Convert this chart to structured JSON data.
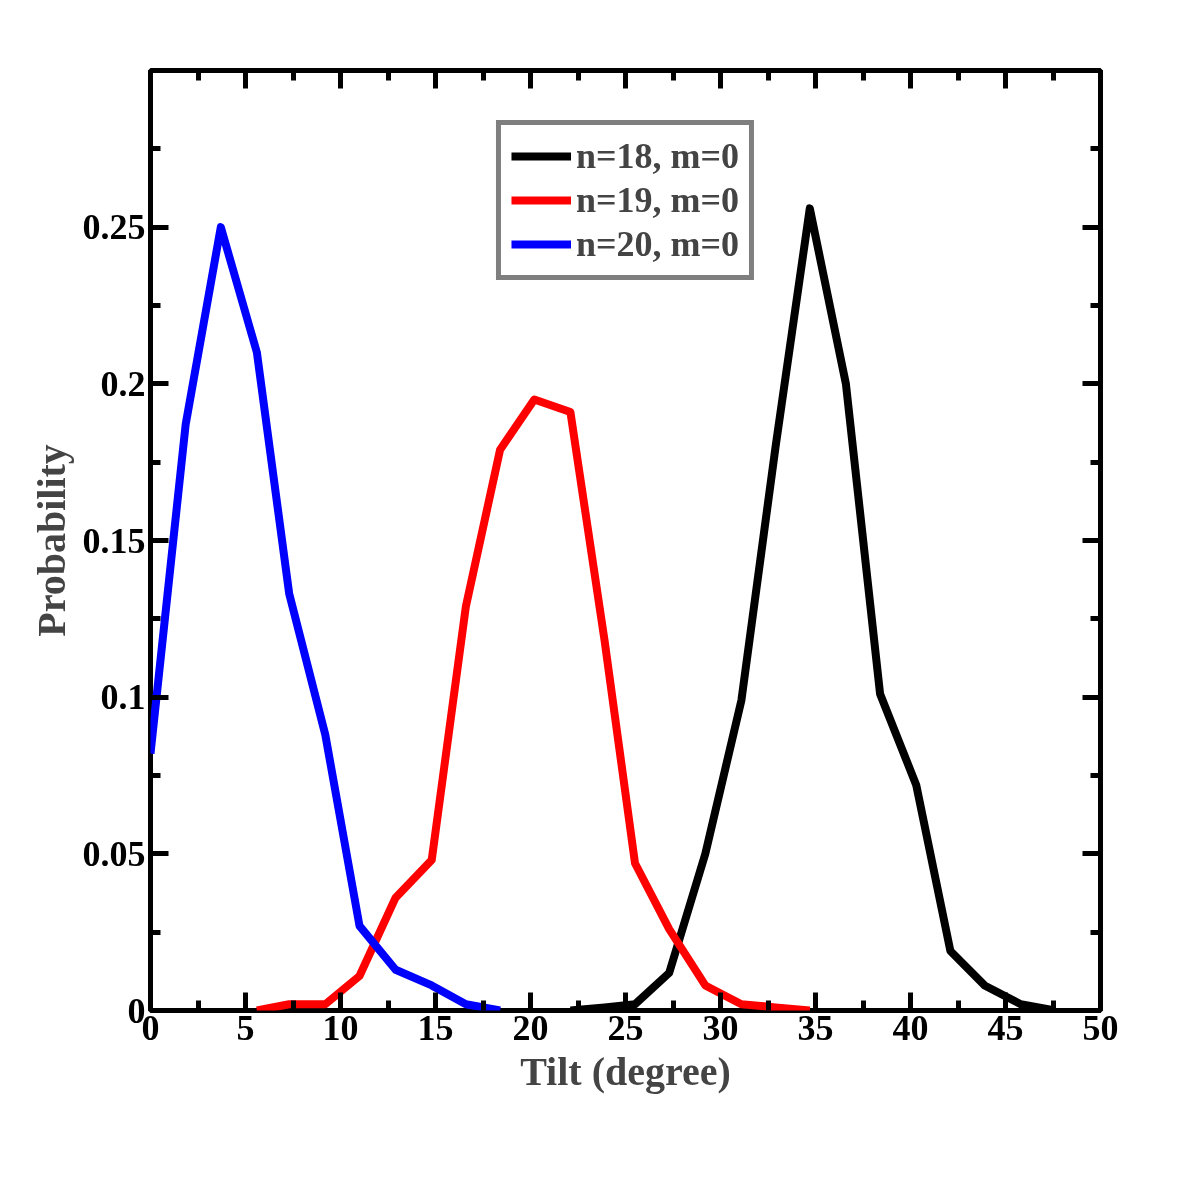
{
  "chart_data": {
    "type": "line",
    "xlabel": "Tilt (degree)",
    "ylabel": "Probability",
    "xlim": [
      0,
      50
    ],
    "ylim": [
      0,
      0.3
    ],
    "xticks": [
      0,
      5,
      10,
      15,
      20,
      25,
      30,
      35,
      40,
      45,
      50
    ],
    "yticks": [
      0,
      0.05,
      0.1,
      0.15,
      0.2,
      0.25
    ],
    "legend": "top",
    "grid": false,
    "marker": "none",
    "line_style": "solid",
    "series": [
      {
        "name": "n=18, m=0",
        "color": "#000000",
        "x": [
          22.1,
          23.9,
          25.5,
          27.3,
          29.2,
          31.1,
          32.9,
          34.7,
          36.6,
          38.4,
          40.3,
          42.1,
          43.9,
          45.8,
          47.6
        ],
        "values": [
          0,
          0.001,
          0.002,
          0.012,
          0.05,
          0.099,
          0.18,
          0.256,
          0.2,
          0.101,
          0.072,
          0.019,
          0.008,
          0.002,
          0
        ]
      },
      {
        "name": "n=19, m=0",
        "color": "#ff0000",
        "x": [
          5.6,
          7.3,
          9.2,
          11.0,
          12.9,
          14.8,
          16.6,
          18.4,
          20.2,
          22.1,
          23.9,
          25.5,
          27.3,
          29.2,
          31.1,
          32.9,
          34.7
        ],
        "values": [
          0,
          0.002,
          0.002,
          0.011,
          0.036,
          0.048,
          0.129,
          0.179,
          0.195,
          0.191,
          0.118,
          0.047,
          0.026,
          0.008,
          0.002,
          0.001,
          0
        ]
      },
      {
        "name": "n=20, m=0",
        "color": "#0000ff",
        "x": [
          0,
          1.85,
          3.7,
          5.6,
          7.3,
          9.2,
          11.0,
          12.9,
          14.8,
          16.6,
          18.4
        ],
        "values": [
          0.082,
          0.187,
          0.25,
          0.21,
          0.133,
          0.088,
          0.027,
          0.013,
          0.008,
          0.002,
          0
        ]
      }
    ]
  }
}
